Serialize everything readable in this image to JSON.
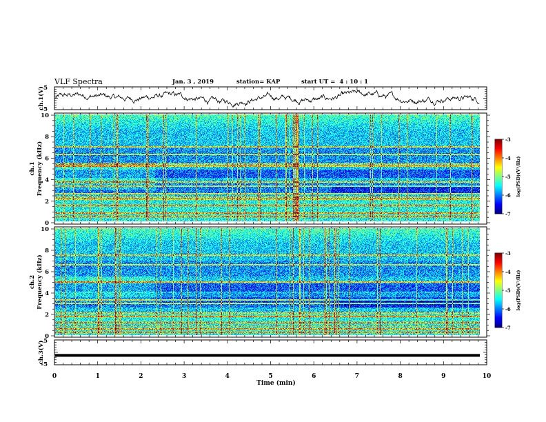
{
  "header": {
    "title": "VLF Spectra",
    "date": "Jan. 3 , 2019",
    "station": "station= KAP",
    "start": "start UT =  4 : 10 : 1"
  },
  "chart_data": [
    {
      "type": "line",
      "name": "ch1-waveform",
      "ylabel": "ch.1(V)",
      "ylim": [
        -5,
        5
      ],
      "yticks": [
        "5",
        "-5"
      ],
      "xlim": [
        0,
        10
      ]
    },
    {
      "type": "heatmap",
      "name": "ch1-spectrogram",
      "ylabel_line1": "ch.1",
      "ylabel_line2": "Frequency (kHz)",
      "ylim": [
        0,
        10
      ],
      "yticks": [
        "0",
        "2",
        "4",
        "6",
        "8",
        "10"
      ],
      "xlim": [
        0,
        10
      ],
      "colorbar": {
        "label": "log(PSD)(V²/Hz)",
        "range": [
          -7,
          -3
        ],
        "ticks": [
          "-3",
          "-4",
          "-5",
          "-6",
          "-7"
        ]
      }
    },
    {
      "type": "heatmap",
      "name": "ch2-spectrogram",
      "ylabel_line1": "ch.2",
      "ylabel_line2": "Frequency (kHz)",
      "ylim": [
        0,
        10
      ],
      "yticks": [
        "0",
        "2",
        "4",
        "6",
        "8",
        "10"
      ],
      "xlim": [
        0,
        10
      ],
      "colorbar": {
        "label": "log(PSD)(V²/Hz)",
        "range": [
          -7,
          -3
        ],
        "ticks": [
          "-3",
          "-4",
          "-5",
          "-6",
          "-7"
        ]
      }
    },
    {
      "type": "line",
      "name": "ch3-waveform",
      "ylabel": "ch.3(V)",
      "ylim": [
        -5,
        5
      ],
      "yticks": [
        "5",
        "-5"
      ],
      "xlim": [
        0,
        10
      ],
      "constant_value": -1.2
    }
  ],
  "xaxis": {
    "label": "Time (min)",
    "ticks": [
      "0",
      "1",
      "2",
      "3",
      "4",
      "5",
      "6",
      "7",
      "8",
      "9",
      "10"
    ]
  }
}
